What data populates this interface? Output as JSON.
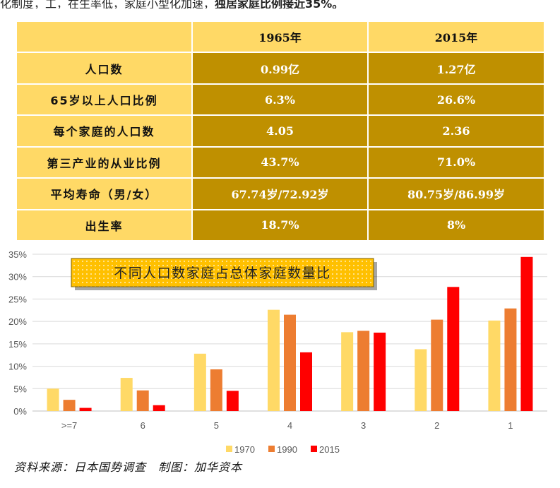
{
  "intro_text": {
    "plain": "化制度，工，在生率低，家庭小型化加速，",
    "bold": "独居家庭比例接近35%。"
  },
  "table": {
    "header": [
      "",
      "1965年",
      "2015年"
    ],
    "rows": [
      {
        "label": "人口数",
        "v1965": "0.99亿",
        "v2015": "1.27亿"
      },
      {
        "label": "65岁以上人口比例",
        "v1965": "6.3%",
        "v2015": "26.6%"
      },
      {
        "label": "每个家庭的人口数",
        "v1965": "4.05",
        "v2015": "2.36"
      },
      {
        "label": "第三产业的从业比例",
        "v1965": "43.7%",
        "v2015": "71.0%"
      },
      {
        "label": "平均寿命（男/女）",
        "v1965": "67.74岁/72.92岁",
        "v2015": "80.75岁/86.99岁"
      },
      {
        "label": "出生率",
        "v1965": "18.7%",
        "v2015": "8%"
      }
    ]
  },
  "chart_data": {
    "type": "bar",
    "title": "不同人口数家庭占总体家庭数量比",
    "categories": [
      ">=7",
      "6",
      "5",
      "4",
      "3",
      "2",
      "1"
    ],
    "series": [
      {
        "name": "1970",
        "color": "#ffd966",
        "values": [
          5.0,
          7.4,
          12.8,
          22.6,
          17.6,
          13.8,
          20.2
        ]
      },
      {
        "name": "1990",
        "color": "#ed7d31",
        "values": [
          2.5,
          4.6,
          9.3,
          21.5,
          17.9,
          20.4,
          22.9
        ]
      },
      {
        "name": "2015",
        "color": "#ff0000",
        "values": [
          0.7,
          1.3,
          4.5,
          13.1,
          17.5,
          27.7,
          34.4
        ]
      }
    ],
    "yticks": [
      "0%",
      "5%",
      "10%",
      "15%",
      "20%",
      "25%",
      "30%",
      "35%"
    ],
    "ylim": [
      0,
      35
    ],
    "grid": true,
    "legend_position": "bottom"
  },
  "source_text": "资料来源：日本国势调查　制图：加华资本"
}
